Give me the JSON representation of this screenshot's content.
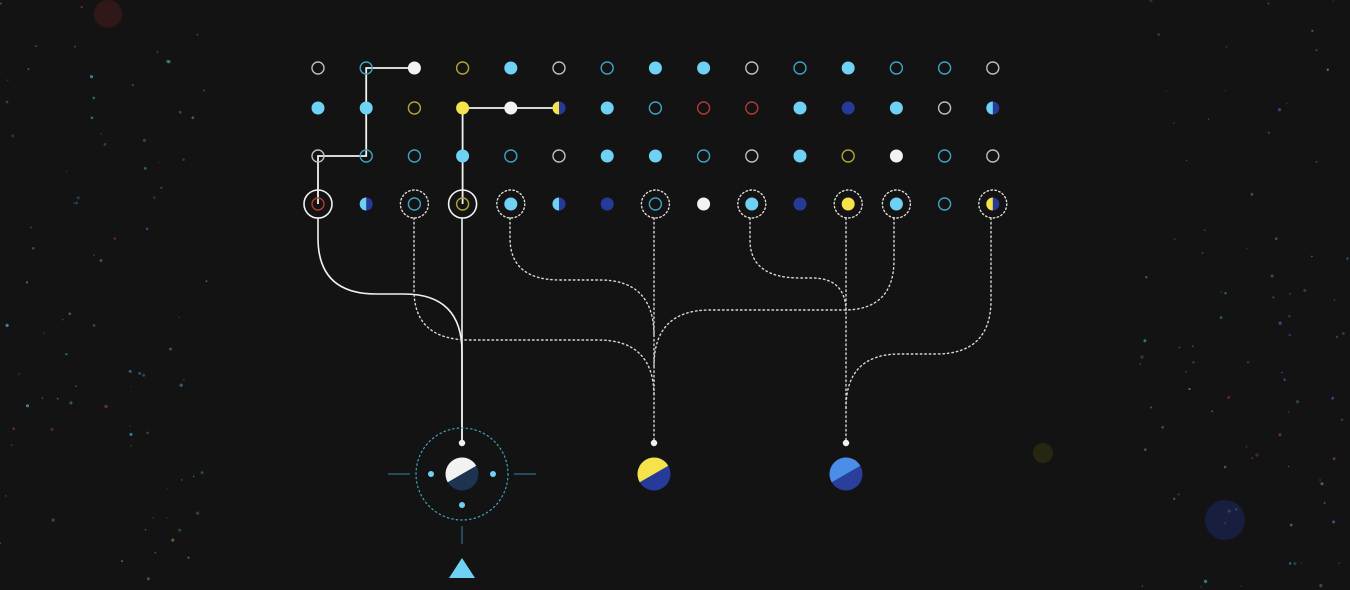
{
  "colors": {
    "background": "#131313",
    "white": "#f2f2f2",
    "cyan": "#6fd2f5",
    "yellow": "#f6e34a",
    "navy": "#263a9a",
    "red": "#b23a32",
    "olive": "#b3a436",
    "teal_ring": "#3fa3be",
    "grey_ring": "#bdbdbd",
    "dotted_line": "#d8d8d8"
  },
  "grid": {
    "rows": [
      [
        "ring-white",
        "ring-teal",
        "fill-white",
        "ring-olive",
        "fill-cyan",
        "ring-white",
        "ring-teal",
        "fill-cyan",
        "fill-cyan",
        "ring-white",
        "ring-teal",
        "fill-cyan",
        "ring-teal",
        "ring-teal",
        "ring-white"
      ],
      [
        "fill-cyan",
        "fill-cyan",
        "ring-olive",
        "fill-yellow",
        "fill-white",
        "half-yellow-navy",
        "fill-cyan",
        "ring-teal",
        "ring-red",
        "ring-red",
        "fill-cyan",
        "fill-navy",
        "fill-cyan",
        "ring-white",
        "half-cyan-navy"
      ],
      [
        "ring-white",
        "ring-teal",
        "ring-teal",
        "fill-cyan",
        "ring-teal",
        "ring-white",
        "fill-cyan",
        "fill-cyan",
        "ring-teal",
        "ring-white",
        "fill-cyan",
        "ring-olive",
        "fill-white",
        "ring-teal",
        "ring-white"
      ],
      [
        "ring-red",
        "half-cyan-navy",
        "ring-teal",
        "ring-olive",
        "fill-cyan",
        "half-cyan-navy",
        "fill-navy",
        "ring-teal",
        "fill-white",
        "fill-cyan",
        "fill-navy",
        "fill-yellow",
        "fill-cyan",
        "ring-teal",
        "half-yellow-navy"
      ]
    ],
    "solid_selected": [
      0,
      3
    ],
    "dotted_selected": [
      2,
      4,
      7,
      9,
      11,
      12,
      14
    ]
  },
  "paths": {
    "white_trail": [
      [
        0,
        2
      ],
      [
        0,
        1
      ],
      [
        1,
        1
      ],
      [
        2,
        1
      ],
      [
        2,
        0
      ],
      [
        3,
        0
      ]
    ],
    "yellow_trail": [
      [
        3,
        3
      ],
      [
        2,
        3
      ],
      [
        1,
        3
      ],
      [
        1,
        4
      ],
      [
        1,
        5
      ]
    ]
  },
  "targets": [
    {
      "id": "player",
      "kind": "white-navy",
      "active": true
    },
    {
      "id": "goal-yellow",
      "kind": "yellow-navy",
      "active": false
    },
    {
      "id": "goal-blue",
      "kind": "blue-navy",
      "active": false
    }
  ],
  "player_marker": {
    "icon": "triangle-up-icon",
    "color": "#6fd2f5"
  }
}
